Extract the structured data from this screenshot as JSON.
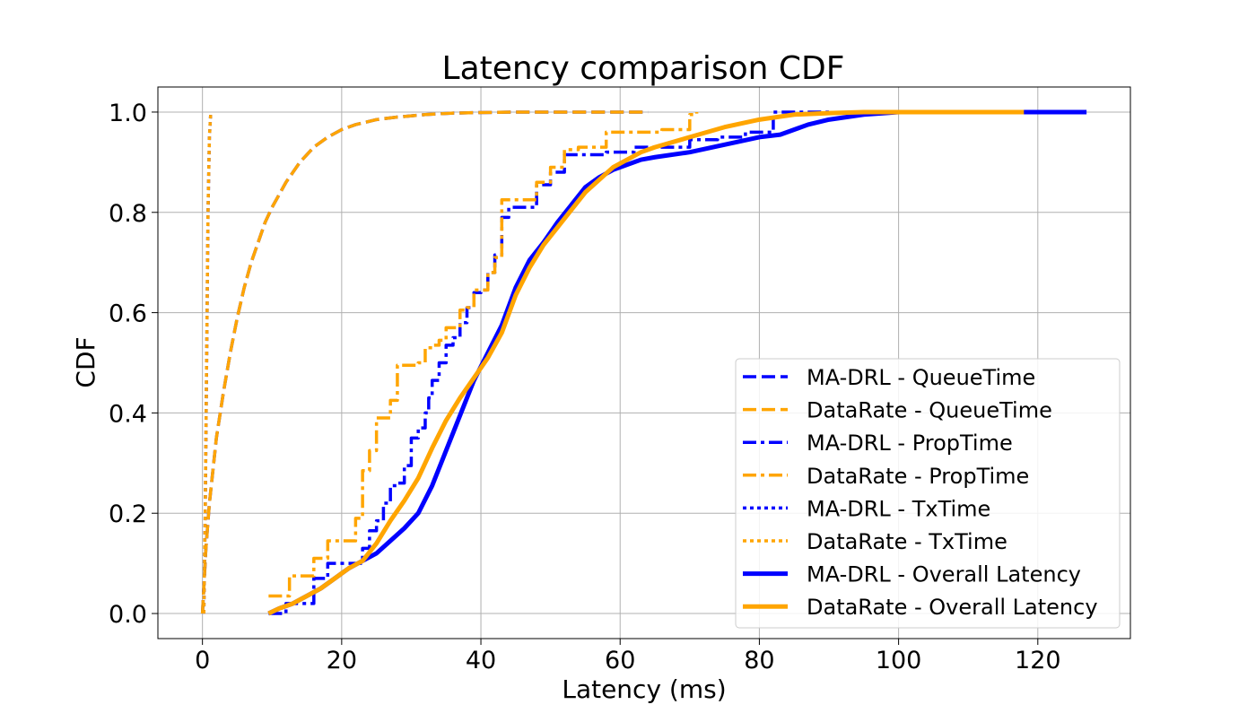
{
  "chart_data": {
    "type": "line",
    "title": "Latency comparison CDF",
    "xlabel": "Latency (ms)",
    "ylabel": "CDF",
    "xlim": [
      -6.4,
      133.3
    ],
    "ylim": [
      -0.05,
      1.05
    ],
    "xticks": [
      0,
      20,
      40,
      60,
      80,
      100,
      120
    ],
    "yticks": [
      0.0,
      0.2,
      0.4,
      0.6,
      0.8,
      1.0
    ],
    "xtick_labels": [
      "0",
      "20",
      "40",
      "60",
      "80",
      "100",
      "120"
    ],
    "ytick_labels": [
      "0.0",
      "0.2",
      "0.4",
      "0.6",
      "0.8",
      "1.0"
    ],
    "grid": true,
    "legend_position": "lower-right",
    "series": [
      {
        "name": "MA-DRL - QueueTime",
        "color": "#0000ff",
        "style": "dashed",
        "x": [
          0,
          0.5,
          1,
          2,
          3,
          4,
          5,
          6,
          7,
          8,
          9,
          10,
          12,
          14,
          16,
          18,
          20,
          22,
          25,
          28,
          32,
          36,
          40,
          45,
          50,
          55,
          60,
          64
        ],
        "y": [
          0,
          0.13,
          0.22,
          0.35,
          0.44,
          0.52,
          0.59,
          0.65,
          0.7,
          0.74,
          0.78,
          0.81,
          0.86,
          0.9,
          0.93,
          0.95,
          0.965,
          0.975,
          0.985,
          0.99,
          0.995,
          0.998,
          0.999,
          1.0,
          1.0,
          1.0,
          1.0,
          1.0
        ]
      },
      {
        "name": "DataRate - QueueTime",
        "color": "#ffa500",
        "style": "dashed",
        "x": [
          0,
          0.5,
          1,
          2,
          3,
          4,
          5,
          6,
          7,
          8,
          9,
          10,
          12,
          14,
          16,
          18,
          20,
          22,
          25,
          28,
          32,
          36,
          40,
          45,
          50,
          55,
          60,
          64
        ],
        "y": [
          0,
          0.13,
          0.22,
          0.35,
          0.44,
          0.52,
          0.59,
          0.65,
          0.7,
          0.74,
          0.78,
          0.81,
          0.86,
          0.9,
          0.93,
          0.95,
          0.965,
          0.975,
          0.985,
          0.99,
          0.995,
          0.998,
          0.999,
          1.0,
          1.0,
          1.0,
          1.0,
          1.0
        ]
      },
      {
        "name": "MA-DRL - PropTime",
        "color": "#0000ff",
        "style": "dashdot",
        "step": true,
        "x": [
          9.5,
          12,
          16,
          18,
          23,
          24,
          25,
          26,
          27,
          28,
          29,
          30,
          31,
          32,
          32.5,
          33,
          34,
          35,
          36,
          37,
          38,
          39,
          40,
          41,
          42,
          43,
          44,
          48,
          50,
          52,
          55,
          58,
          62,
          66,
          70,
          74,
          78,
          82,
          90
        ],
        "y": [
          0,
          0.02,
          0.07,
          0.1,
          0.13,
          0.165,
          0.185,
          0.22,
          0.255,
          0.26,
          0.295,
          0.35,
          0.37,
          0.4,
          0.43,
          0.465,
          0.5,
          0.535,
          0.55,
          0.58,
          0.61,
          0.64,
          0.645,
          0.68,
          0.715,
          0.79,
          0.81,
          0.855,
          0.88,
          0.915,
          0.915,
          0.92,
          0.93,
          0.93,
          0.945,
          0.95,
          0.96,
          1.0,
          1.0
        ]
      },
      {
        "name": "DataRate - PropTime",
        "color": "#ffa500",
        "style": "dashdot",
        "step": true,
        "x": [
          9.5,
          12.5,
          16,
          18,
          22,
          23,
          24,
          25,
          27,
          28,
          30,
          31,
          32,
          33,
          34,
          35,
          36,
          37,
          38,
          39,
          40,
          41,
          42,
          43,
          44,
          48,
          50,
          52,
          54,
          58,
          62,
          66,
          70,
          71
        ],
        "y": [
          0.035,
          0.075,
          0.11,
          0.145,
          0.19,
          0.285,
          0.325,
          0.39,
          0.425,
          0.495,
          0.495,
          0.5,
          0.53,
          0.535,
          0.545,
          0.57,
          0.57,
          0.605,
          0.61,
          0.645,
          0.645,
          0.68,
          0.71,
          0.825,
          0.825,
          0.86,
          0.89,
          0.925,
          0.93,
          0.96,
          0.96,
          0.965,
          0.995,
          1.0
        ]
      },
      {
        "name": "MA-DRL - TxTime",
        "color": "#0000ff",
        "style": "dotted",
        "x": [
          0.2,
          0.4,
          0.6,
          0.8,
          1.0,
          1.2
        ],
        "y": [
          0,
          0.2,
          0.5,
          0.8,
          0.95,
          1.0
        ]
      },
      {
        "name": "DataRate - TxTime",
        "color": "#ffa500",
        "style": "dotted",
        "x": [
          0.2,
          0.4,
          0.6,
          0.8,
          1.0,
          1.2
        ],
        "y": [
          0,
          0.2,
          0.5,
          0.8,
          0.95,
          1.0
        ]
      },
      {
        "name": "MA-DRL - Overall Latency",
        "color": "#0000ff",
        "style": "solid",
        "x": [
          9.5,
          11,
          13,
          15,
          17,
          19,
          21,
          23,
          25,
          27,
          29,
          31,
          33,
          35,
          37,
          39,
          41,
          43,
          45,
          47,
          49,
          51,
          53,
          55,
          57,
          59,
          61,
          63,
          65,
          70,
          75,
          80,
          83,
          87,
          90,
          95,
          100,
          110,
          120,
          127
        ],
        "y": [
          0,
          0.01,
          0.02,
          0.035,
          0.05,
          0.07,
          0.09,
          0.105,
          0.12,
          0.145,
          0.17,
          0.2,
          0.255,
          0.325,
          0.395,
          0.465,
          0.52,
          0.575,
          0.65,
          0.705,
          0.74,
          0.78,
          0.815,
          0.85,
          0.87,
          0.885,
          0.895,
          0.905,
          0.91,
          0.92,
          0.935,
          0.95,
          0.955,
          0.975,
          0.985,
          0.995,
          1.0,
          1.0,
          1.0,
          1.0
        ]
      },
      {
        "name": "DataRate - Overall Latency",
        "color": "#ffa500",
        "style": "solid",
        "x": [
          9.5,
          11,
          13,
          15,
          17,
          19,
          21,
          23,
          25,
          27,
          29,
          31,
          33,
          35,
          37,
          39,
          41,
          43,
          45,
          47,
          49,
          51,
          53,
          55,
          57,
          59,
          61,
          63,
          65,
          70,
          75,
          80,
          85,
          90,
          95,
          100,
          110,
          118
        ],
        "y": [
          0,
          0.01,
          0.02,
          0.035,
          0.05,
          0.07,
          0.09,
          0.105,
          0.14,
          0.185,
          0.225,
          0.27,
          0.33,
          0.385,
          0.43,
          0.47,
          0.51,
          0.56,
          0.635,
          0.69,
          0.735,
          0.77,
          0.805,
          0.84,
          0.865,
          0.89,
          0.905,
          0.92,
          0.93,
          0.95,
          0.97,
          0.985,
          0.995,
          0.998,
          1.0,
          1.0,
          1.0,
          1.0
        ]
      }
    ]
  }
}
